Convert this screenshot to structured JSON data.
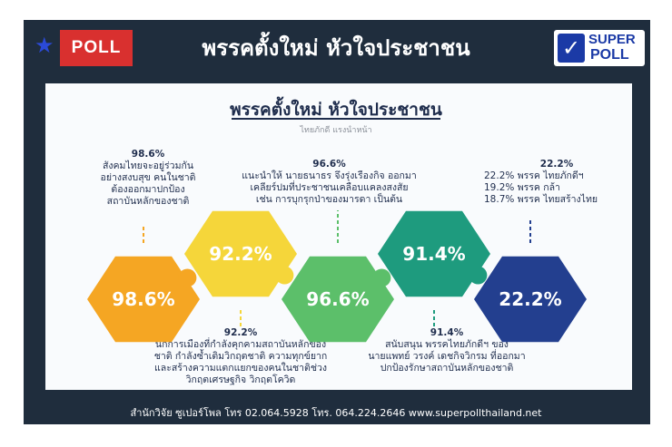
{
  "header": {
    "badge": "POLL",
    "title": "พรรคตั้งใหม่ หัวใจประชาชน",
    "logo_top": "SUPER",
    "logo_bottom": "POLL"
  },
  "chart_data": {
    "type": "infographic",
    "title": "พรรคตั้งใหม่ หัวใจประชาชน",
    "subtitle": "ไทยภักดี แรงนำหน้า",
    "items": [
      {
        "value": 98.6,
        "label": "98.6%",
        "color": "#f5a623",
        "annotation_pct": "98.6%",
        "annotation_lines": [
          "สังคมไทยจะอยู่ร่วมกัน",
          "อย่างสงบสุข คนในชาติ",
          "ต้องออกมาปกป้อง",
          "สถาบันหลักของชาติ"
        ]
      },
      {
        "value": 92.2,
        "label": "92.2%",
        "color": "#f5d63a",
        "annotation_pct": "92.2%",
        "annotation_lines": [
          "นักการเมืองที่กำลังคุกคามสถาบันหลักของ",
          "ชาติ กำลังซ้ำเติมวิกฤตชาติ ความทุกข์ยาก",
          "และสร้างความแตกแยกของคนในชาติช่วง",
          "วิกฤตเศรษฐกิจ วิกฤตโควิด"
        ]
      },
      {
        "value": 96.6,
        "label": "96.6%",
        "color": "#5cbf6a",
        "annotation_pct": "96.6%",
        "annotation_lines": [
          "แนะนำให้ นายธนาธร จึงรุ่งเรืองกิจ ออกมา",
          "เคลียร์ปมที่ประชาชนเคลือบแคลงสงสัย",
          "เช่น การบุกรุกป่าของมารดา เป็นต้น"
        ]
      },
      {
        "value": 91.4,
        "label": "91.4%",
        "color": "#1e9b7e",
        "annotation_pct": "91.4%",
        "annotation_lines": [
          "สนับสนุน พรรคไทยภักดีฯ ของ",
          "นายแพทย์ วรงค์ เดชกิจวิกรม ที่ออกมา",
          "ปกป้องรักษาสถาบันหลักของชาติ"
        ]
      },
      {
        "value": 22.2,
        "label": "22.2%",
        "color": "#233f8f",
        "annotation_pct": "22.2%",
        "annotation_lines": [
          "22.2% พรรค ไทยภักดีฯ",
          "19.2% พรรค กล้า",
          "18.7% พรรค ไทยสร้างไทย"
        ]
      }
    ]
  },
  "footer": {
    "text": "สำนักวิจัย ซูเปอร์โพล โทร 02.064.5928 โทร. 064.224.2646 www.superpollthailand.net"
  }
}
